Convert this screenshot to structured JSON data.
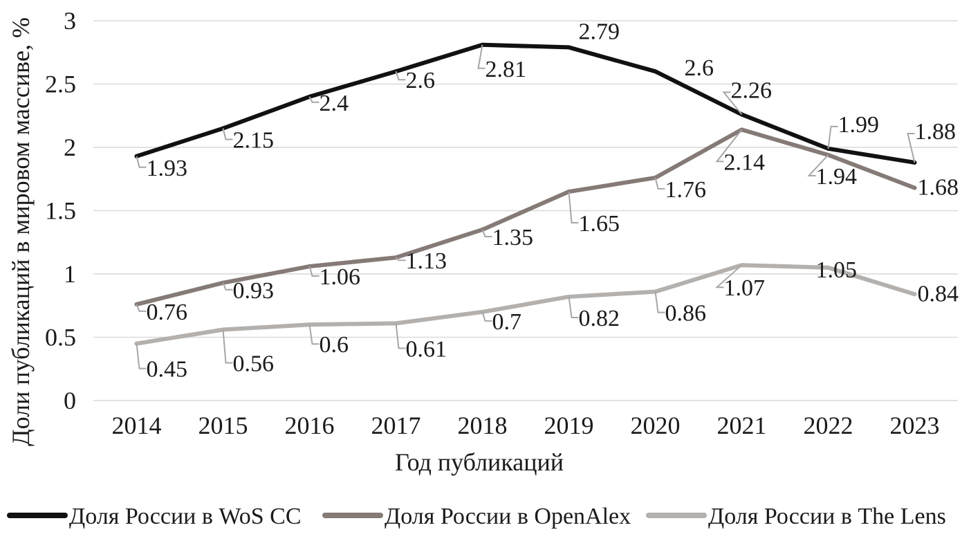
{
  "chart_data": {
    "type": "line",
    "title": "",
    "xlabel": "Год публикаций",
    "ylabel": "Доли публикаций в мировом массиве, %",
    "categories": [
      "2014",
      "2015",
      "2016",
      "2017",
      "2018",
      "2019",
      "2020",
      "2021",
      "2022",
      "2023"
    ],
    "ylim": [
      0,
      3
    ],
    "yticks": [
      "0",
      "0.5",
      "1",
      "1.5",
      "2",
      "2.5",
      "3"
    ],
    "grid": true,
    "legend_position": "bottom",
    "series": [
      {
        "name": "Доля России в WoS CC",
        "color": "#111111",
        "values": [
          1.93,
          2.15,
          2.4,
          2.6,
          2.81,
          2.79,
          2.6,
          2.26,
          1.99,
          1.88
        ],
        "labels": [
          "1.93",
          "2.15",
          "2.4",
          "2.6",
          "2.81",
          "2.79",
          "2.6",
          "2.26",
          "1.99",
          "1.88"
        ]
      },
      {
        "name": "Доля России в OpenAlex",
        "color": "#857a76",
        "values": [
          0.76,
          0.93,
          1.06,
          1.13,
          1.35,
          1.65,
          1.76,
          2.14,
          1.94,
          1.68
        ],
        "labels": [
          "0.76",
          "0.93",
          "1.06",
          "1.13",
          "1.35",
          "1.65",
          "1.76",
          "2.14",
          "1.94",
          "1.68"
        ]
      },
      {
        "name": "Доля России в The Lens",
        "color": "#b3b0ad",
        "values": [
          0.45,
          0.56,
          0.6,
          0.61,
          0.7,
          0.82,
          0.86,
          1.07,
          1.05,
          0.84
        ],
        "labels": [
          "0.45",
          "0.56",
          "0.6",
          "0.61",
          "0.7",
          "0.82",
          "0.86",
          "1.07",
          "1.05",
          "0.84"
        ]
      }
    ]
  }
}
